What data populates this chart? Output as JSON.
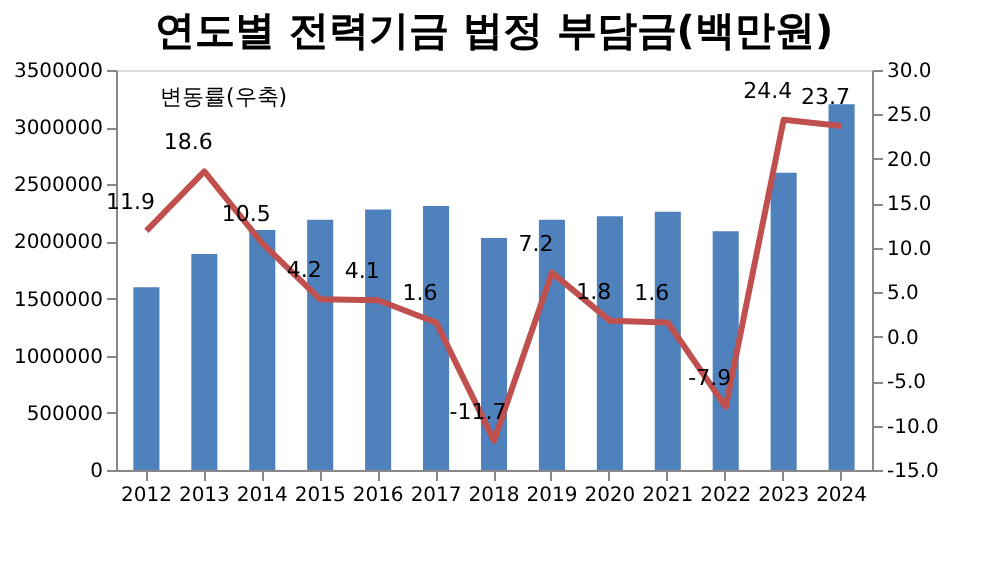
{
  "chart_data": {
    "type": "bar",
    "title": "연도별 전력기금 법정 부담금(백만원)",
    "categories": [
      "2012",
      "2013",
      "2014",
      "2015",
      "2016",
      "2017",
      "2018",
      "2019",
      "2020",
      "2021",
      "2022",
      "2023",
      "2024"
    ],
    "series": [
      {
        "color": "#4f81bd",
        "values": [
          1600000,
          1890000,
          2100000,
          2190000,
          2280000,
          2310000,
          2030000,
          2190000,
          2220000,
          2260000,
          2090000,
          2600000,
          3200000
        ]
      },
      {
        "type": "line",
        "axis": "y2",
        "color": "#c0504d",
        "values": [
          11.9,
          18.6,
          10.5,
          4.2,
          4.1,
          1.6,
          -11.7,
          7.2,
          1.8,
          1.6,
          -7.9,
          24.4,
          23.7
        ],
        "value_labels": [
          "11.9",
          "18.6",
          "10.5",
          "4.2",
          "4.1",
          "1.6",
          "-11.7",
          "7.2",
          "1.8",
          "1.6",
          "-7.9",
          "24.4",
          "23.7"
        ]
      }
    ],
    "ylim": [
      0,
      3500000
    ],
    "yticks": [
      0,
      500000,
      1000000,
      1500000,
      2000000,
      2500000,
      3000000,
      3500000
    ],
    "y2lim": [
      -15,
      30
    ],
    "y2ticks": [
      {
        "value": -15,
        "label": "-15.0"
      },
      {
        "value": -10,
        "label": "-10.0"
      },
      {
        "value": -5,
        "label": "-5.0"
      },
      {
        "value": 0,
        "label": "0.0"
      },
      {
        "value": 5,
        "label": "5.0"
      },
      {
        "value": 10,
        "label": "10.0"
      },
      {
        "value": 15,
        "label": "15.0"
      },
      {
        "value": 20,
        "label": "20.0"
      },
      {
        "value": 25,
        "label": "25.0"
      },
      {
        "value": 30,
        "label": "30.0"
      }
    ],
    "annotations": [
      "변동률(우축)"
    ],
    "grid": false,
    "marker": "none"
  }
}
